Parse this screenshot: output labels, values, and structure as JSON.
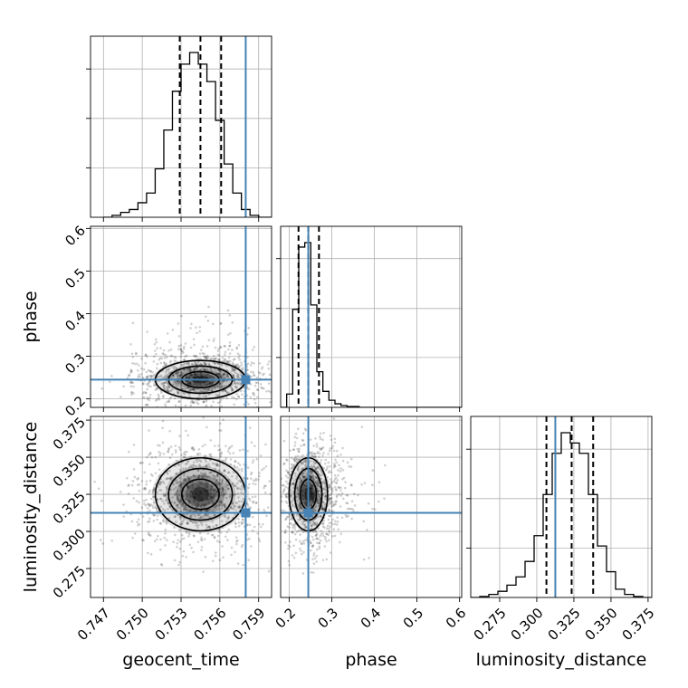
{
  "chart_data": {
    "type": "corner",
    "parameters": [
      "geocent_time",
      "phase",
      "luminosity_distance"
    ],
    "truth": {
      "geocent_time": 0.758,
      "phase": 0.245,
      "luminosity_distance": 0.3125
    },
    "truth_color": "#4682b4",
    "grid": true,
    "ticks": {
      "geocent_time": [
        "0.747",
        "0.750",
        "0.753",
        "0.756",
        "0.759"
      ],
      "phase": [
        "0.2",
        "0.3",
        "0.4",
        "0.5",
        "0.6"
      ],
      "luminosity_distance": [
        "0.275",
        "0.300",
        "0.325",
        "0.350",
        "0.375"
      ]
    },
    "ranges": {
      "geocent_time": [
        0.746,
        0.76
      ],
      "phase": [
        0.18,
        0.605
      ],
      "luminosity_distance": [
        0.2555,
        0.3775
      ]
    },
    "axis_labels": {
      "x": [
        "geocent_time",
        "phase",
        "luminosity_distance"
      ],
      "y": [
        "phase",
        "luminosity_distance"
      ]
    },
    "histograms": {
      "geocent_time": {
        "edges_start": 0.747,
        "bin_width": 0.0006667,
        "counts": [
          0,
          2,
          5,
          8,
          15,
          25,
          50,
          90,
          130,
          158,
          170,
          158,
          140,
          100,
          55,
          25,
          8,
          2,
          0,
          0
        ],
        "quantiles": [
          0.7529,
          0.7545,
          0.7561
        ]
      },
      "phase": {
        "edges_start": 0.18,
        "bin_width": 0.01417,
        "counts": [
          0,
          15,
          110,
          180,
          185,
          115,
          40,
          18,
          8,
          4,
          2,
          1,
          1,
          0,
          0,
          0,
          0,
          0,
          0,
          0,
          0,
          0,
          0,
          0,
          0,
          0,
          0,
          0,
          0,
          0
        ],
        "quantiles": [
          0.222,
          0.245,
          0.27
        ]
      },
      "luminosity_distance": {
        "edges_start": 0.2555,
        "bin_width": 0.0061,
        "counts": [
          0,
          1,
          3,
          6,
          12,
          20,
          35,
          60,
          100,
          140,
          160,
          150,
          140,
          100,
          50,
          25,
          8,
          3,
          1,
          0
        ],
        "quantiles": [
          0.3065,
          0.3235,
          0.338
        ]
      }
    },
    "joint_2d": [
      {
        "x": "geocent_time",
        "y": "phase",
        "mean": [
          0.7545,
          0.245
        ],
        "sd": [
          0.0017,
          0.022
        ]
      },
      {
        "x": "geocent_time",
        "y": "luminosity_distance",
        "mean": [
          0.7545,
          0.325
        ],
        "sd": [
          0.0017,
          0.012
        ]
      },
      {
        "x": "phase",
        "y": "luminosity_distance",
        "mean": [
          0.245,
          0.325
        ],
        "sd": [
          0.022,
          0.012
        ]
      }
    ]
  }
}
